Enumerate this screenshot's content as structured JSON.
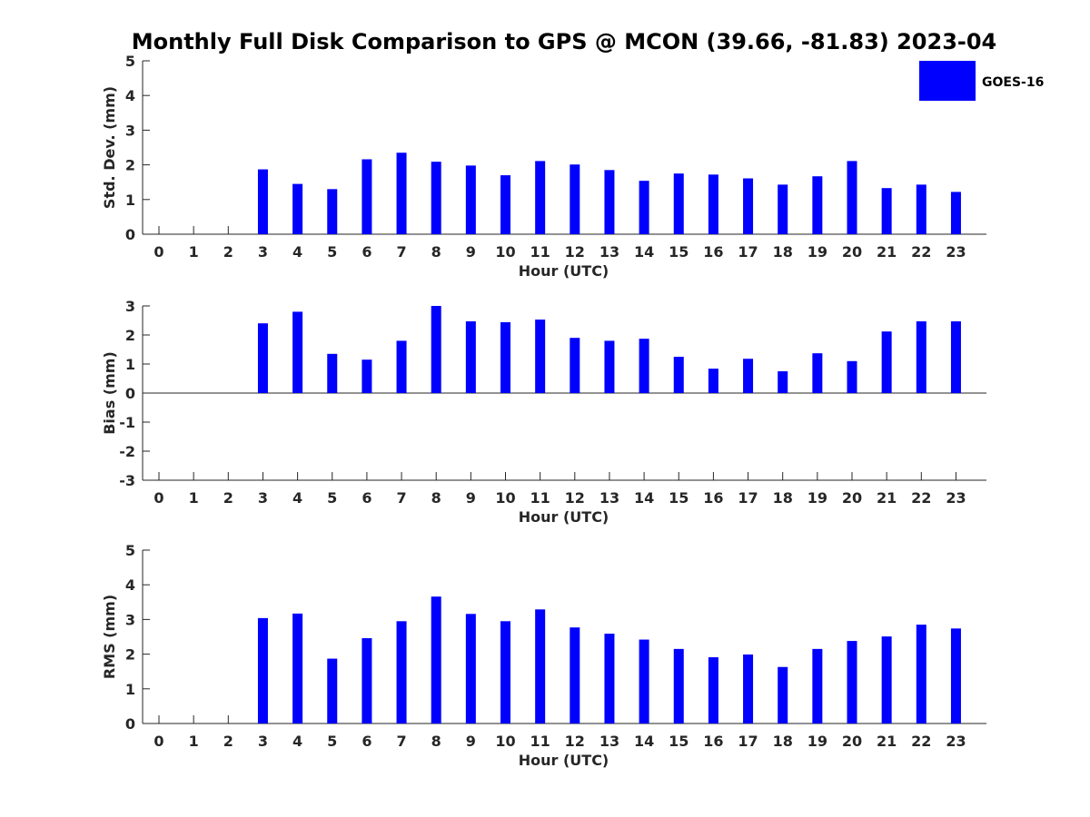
{
  "title": "Monthly Full Disk Comparison to GPS @ MCON (39.66, -81.83) 2023-04",
  "legend": {
    "label": "GOES-16",
    "color": "#0000ff",
    "placement": "top-right"
  },
  "chart_data": [
    {
      "type": "bar",
      "ylabel": "Std. Dev. (mm)",
      "xlabel": "Hour (UTC)",
      "ylim": [
        0,
        5
      ],
      "yticks": [
        0,
        1,
        2,
        3,
        4,
        5
      ],
      "categories": [
        "0",
        "1",
        "2",
        "3",
        "4",
        "5",
        "6",
        "7",
        "8",
        "9",
        "10",
        "11",
        "12",
        "13",
        "14",
        "15",
        "16",
        "17",
        "18",
        "19",
        "20",
        "21",
        "22",
        "23"
      ],
      "series": [
        {
          "name": "GOES-16",
          "values": [
            null,
            null,
            null,
            1.87,
            1.45,
            1.3,
            2.16,
            2.35,
            2.09,
            1.98,
            1.7,
            2.11,
            2.01,
            1.85,
            1.54,
            1.75,
            1.72,
            1.61,
            1.43,
            1.67,
            2.11,
            1.33,
            1.43,
            1.22
          ]
        }
      ]
    },
    {
      "type": "bar",
      "ylabel": "Bias (mm)",
      "xlabel": "Hour (UTC)",
      "ylim": [
        -3,
        3
      ],
      "yticks": [
        -3,
        -2,
        -1,
        0,
        1,
        2,
        3
      ],
      "categories": [
        "0",
        "1",
        "2",
        "3",
        "4",
        "5",
        "6",
        "7",
        "8",
        "9",
        "10",
        "11",
        "12",
        "13",
        "14",
        "15",
        "16",
        "17",
        "18",
        "19",
        "20",
        "21",
        "22",
        "23"
      ],
      "series": [
        {
          "name": "GOES-16",
          "values": [
            null,
            null,
            null,
            2.4,
            2.8,
            1.35,
            1.15,
            1.8,
            3.0,
            2.47,
            2.44,
            2.53,
            1.9,
            1.8,
            1.87,
            1.25,
            0.84,
            1.18,
            0.75,
            1.37,
            1.1,
            2.12,
            2.47,
            2.47
          ]
        }
      ]
    },
    {
      "type": "bar",
      "ylabel": "RMS (mm)",
      "xlabel": "Hour (UTC)",
      "ylim": [
        0,
        5
      ],
      "yticks": [
        0,
        1,
        2,
        3,
        4,
        5
      ],
      "categories": [
        "0",
        "1",
        "2",
        "3",
        "4",
        "5",
        "6",
        "7",
        "8",
        "9",
        "10",
        "11",
        "12",
        "13",
        "14",
        "15",
        "16",
        "17",
        "18",
        "19",
        "20",
        "21",
        "22",
        "23"
      ],
      "series": [
        {
          "name": "GOES-16",
          "values": [
            null,
            null,
            null,
            3.04,
            3.17,
            1.87,
            2.46,
            2.95,
            3.66,
            3.16,
            2.95,
            3.29,
            2.77,
            2.59,
            2.42,
            2.15,
            1.91,
            1.99,
            1.63,
            2.15,
            2.38,
            2.51,
            2.85,
            2.74
          ]
        }
      ]
    }
  ]
}
